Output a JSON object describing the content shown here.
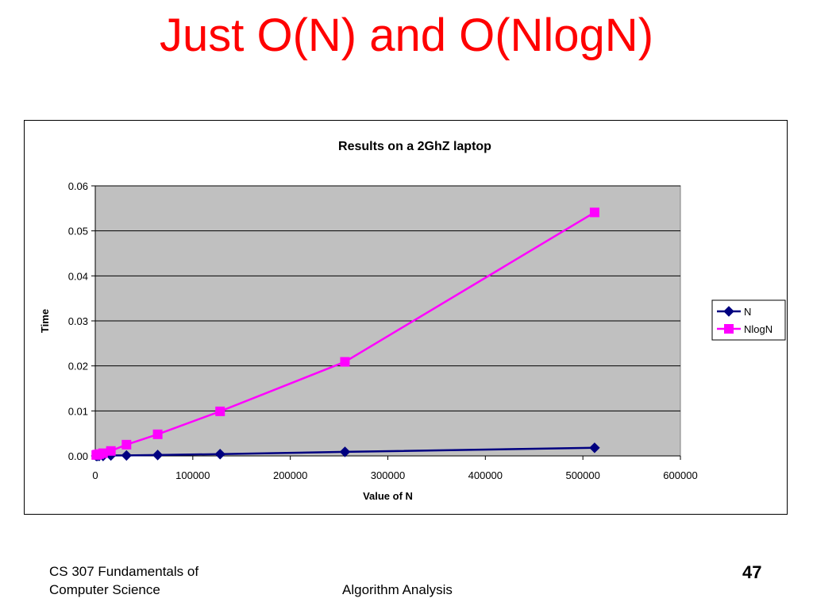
{
  "slide": {
    "title": "Just O(N) and O(NlogN)",
    "footer_line1": "CS 307 Fundamentals of",
    "footer_line2": "Computer Science",
    "footer_center": "Algorithm Analysis",
    "page_number": "47"
  },
  "chart_data": {
    "type": "line",
    "title": "Results on a 2GhZ laptop",
    "xlabel": "Value of N",
    "ylabel": "Time",
    "xlim": [
      0,
      600000
    ],
    "ylim": [
      0,
      0.06
    ],
    "x_ticks": [
      "0",
      "100000",
      "200000",
      "300000",
      "400000",
      "500000",
      "600000"
    ],
    "y_ticks": [
      "0.00",
      "0.01",
      "0.02",
      "0.03",
      "0.04",
      "0.05",
      "0.06"
    ],
    "grid": true,
    "plot_background": "#c0c0c0",
    "legend_position": "right",
    "series": [
      {
        "name": "N",
        "color": "#000080",
        "marker": "diamond",
        "x": [
          1000,
          2000,
          4000,
          8000,
          16000,
          32000,
          64000,
          128000,
          256000,
          512000
        ],
        "y": [
          0.0,
          0.0,
          0.0,
          0.0,
          0.0001,
          0.0001,
          0.0002,
          0.0004,
          0.0009,
          0.0018
        ]
      },
      {
        "name": "NlogN",
        "color": "#ff00ff",
        "marker": "square",
        "x": [
          1000,
          2000,
          4000,
          8000,
          16000,
          32000,
          64000,
          128000,
          256000,
          512000
        ],
        "y": [
          0.0002,
          0.0003,
          0.0004,
          0.0006,
          0.0011,
          0.0025,
          0.0048,
          0.0099,
          0.0209,
          0.0541
        ]
      }
    ]
  }
}
